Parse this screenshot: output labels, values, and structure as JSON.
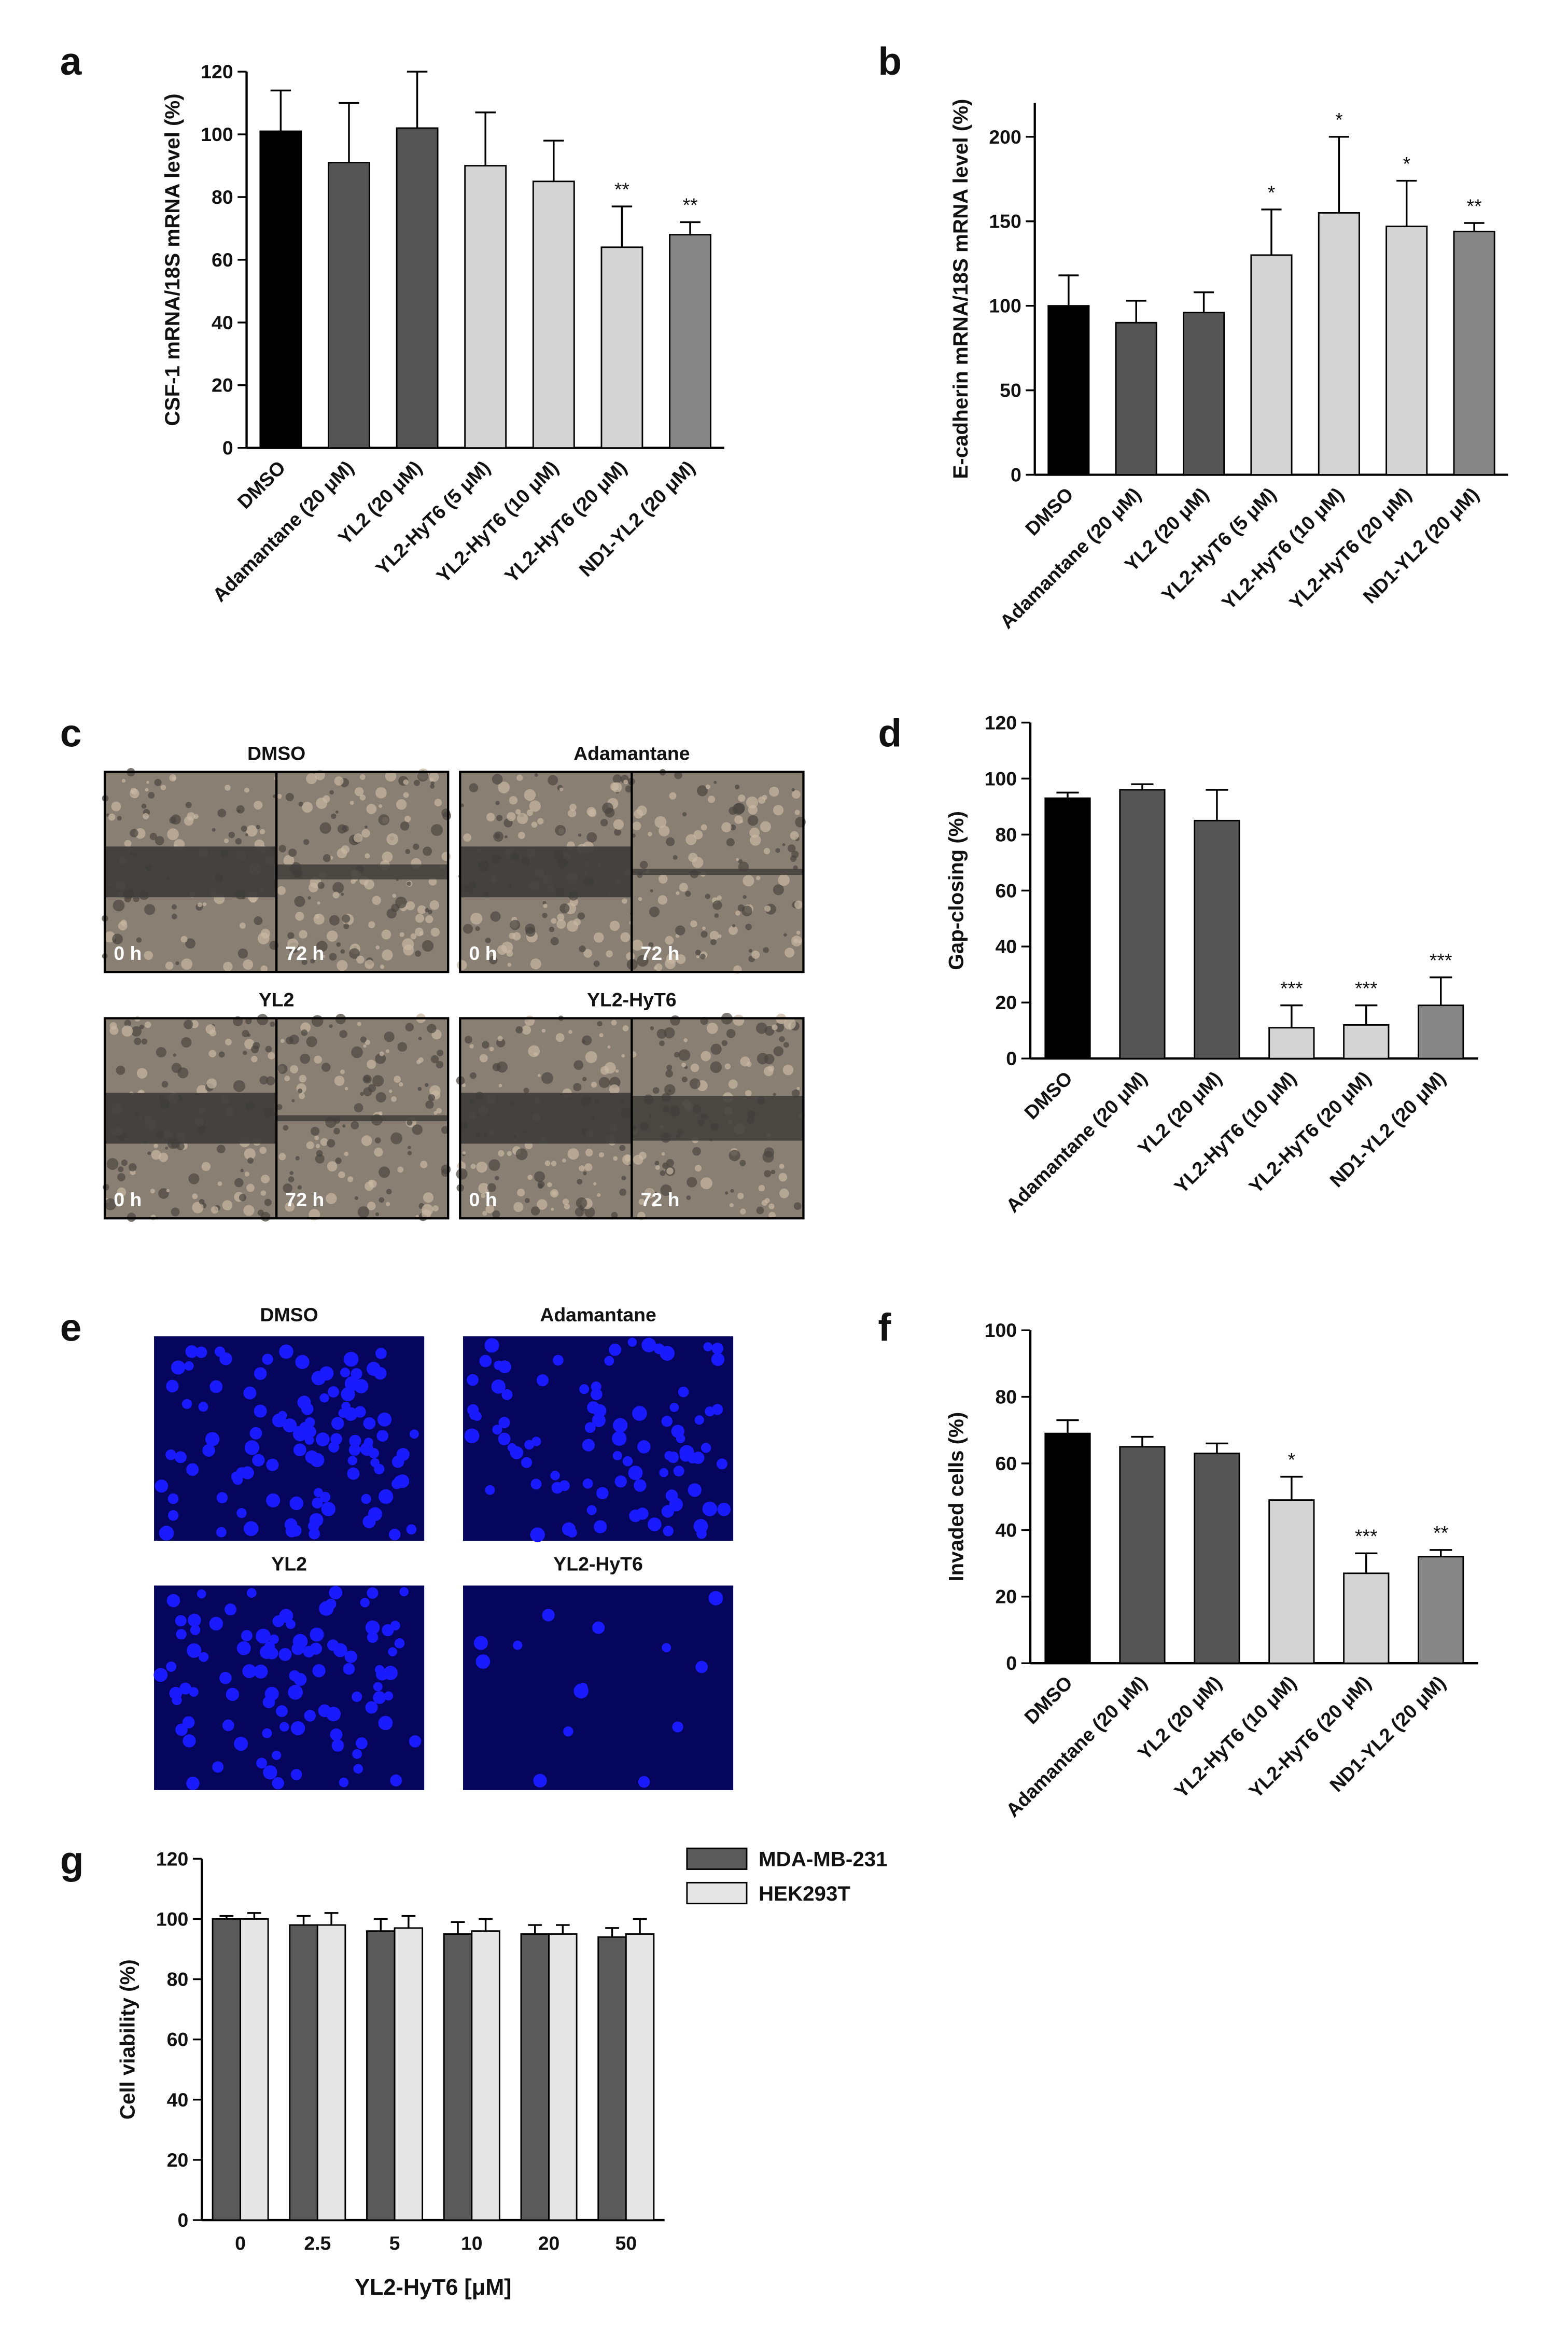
{
  "chart_data": [
    {
      "type": "bar",
      "panel_label": "a",
      "ylabel": "CSF-1 mRNA/18S mRNA level (%)",
      "categories": [
        "DMSO",
        "Adamantane (20 μM)",
        "YL2 (20 μM)",
        "YL2-HyT6 (5 μM)",
        "YL2-HyT6 (10 μM)",
        "YL2-HyT6 (20 μM)",
        "ND1-YL2 (20 μM)"
      ],
      "values": [
        101,
        91,
        102,
        90,
        85,
        64,
        68
      ],
      "errors": [
        13,
        19,
        18,
        17,
        13,
        13,
        4
      ],
      "annotations": [
        null,
        null,
        null,
        null,
        null,
        "**",
        "**"
      ],
      "colors": [
        "#000000",
        "#555555",
        "#555555",
        "#d4d4d4",
        "#d4d4d4",
        "#d4d4d4",
        "#858585"
      ],
      "ylim": [
        0,
        120
      ],
      "yticks": [
        0,
        20,
        40,
        60,
        80,
        100,
        120
      ]
    },
    {
      "type": "bar",
      "panel_label": "b",
      "ylabel": "E-cadherin mRNA/18S mRNA level (%)",
      "categories": [
        "DMSO",
        "Adamantane (20 μM)",
        "YL2 (20 μM)",
        "YL2-HyT6 (5 μM)",
        "YL2-HyT6 (10 μM)",
        "YL2-HyT6 (20 μM)",
        "ND1-YL2 (20 μM)"
      ],
      "values": [
        100,
        90,
        96,
        130,
        155,
        147,
        144
      ],
      "errors": [
        18,
        13,
        12,
        27,
        45,
        27,
        5
      ],
      "annotations": [
        null,
        null,
        null,
        "*",
        "*",
        "*",
        "**"
      ],
      "colors": [
        "#000000",
        "#555555",
        "#555555",
        "#d4d4d4",
        "#d4d4d4",
        "#d4d4d4",
        "#858585"
      ],
      "ylim": [
        0,
        220
      ],
      "yticks": [
        0,
        50,
        100,
        150,
        200
      ]
    },
    {
      "type": "bar",
      "panel_label": "d",
      "ylabel": "Gap-closing (%)",
      "categories": [
        "DMSO",
        "Adamantane (20 μM)",
        "YL2 (20 μM)",
        "YL2-HyT6 (10 μM)",
        "YL2-HyT6 (20 μM)",
        "ND1-YL2 (20 μM)"
      ],
      "values": [
        93,
        96,
        85,
        11,
        12,
        19
      ],
      "errors": [
        2,
        2,
        11,
        8,
        7,
        10
      ],
      "annotations": [
        null,
        null,
        null,
        "***",
        "***",
        "***"
      ],
      "colors": [
        "#000000",
        "#555555",
        "#555555",
        "#d4d4d4",
        "#d4d4d4",
        "#858585"
      ],
      "ylim": [
        0,
        120
      ],
      "yticks": [
        0,
        20,
        40,
        60,
        80,
        100,
        120
      ]
    },
    {
      "type": "bar",
      "panel_label": "f",
      "ylabel": "Invaded cells (%)",
      "categories": [
        "DMSO",
        "Adamantane (20 μM)",
        "YL2 (20 μM)",
        "YL2-HyT6 (10 μM)",
        "YL2-HyT6 (20 μM)",
        "ND1-YL2 (20 μM)"
      ],
      "values": [
        69,
        65,
        63,
        49,
        27,
        32
      ],
      "errors": [
        4,
        3,
        3,
        7,
        6,
        2
      ],
      "annotations": [
        null,
        null,
        null,
        "*",
        "***",
        "**"
      ],
      "colors": [
        "#000000",
        "#555555",
        "#555555",
        "#d4d4d4",
        "#d4d4d4",
        "#858585"
      ],
      "ylim": [
        0,
        100
      ],
      "yticks": [
        0,
        20,
        40,
        60,
        80,
        100
      ]
    },
    {
      "type": "grouped_bar",
      "panel_label": "g",
      "ylabel": "Cell viability (%)",
      "xlabel": "YL2-HyT6 [μM]",
      "categories": [
        "0",
        "2.5",
        "5",
        "10",
        "20",
        "50"
      ],
      "series": [
        {
          "name": "MDA-MB-231",
          "color": "#5a5a5a",
          "values": [
            100,
            98,
            96,
            95,
            95,
            94
          ],
          "errors": [
            1,
            3,
            4,
            4,
            3,
            3
          ]
        },
        {
          "name": "HEK293T",
          "color": "#e6e6e6",
          "values": [
            100,
            98,
            97,
            96,
            95,
            95
          ],
          "errors": [
            2,
            4,
            4,
            4,
            3,
            5
          ]
        }
      ],
      "ylim": [
        0,
        120
      ],
      "yticks": [
        0,
        20,
        40,
        60,
        80,
        100,
        120
      ],
      "legend": "top-right"
    }
  ],
  "images": {
    "c": {
      "panel_label": "c",
      "items": [
        {
          "title": "DMSO",
          "left": "0 h",
          "right": "72 h"
        },
        {
          "title": "Adamantane",
          "left": "0 h",
          "right": "72 h"
        },
        {
          "title": "YL2",
          "left": "0 h",
          "right": "72 h"
        },
        {
          "title": "YL2-HyT6",
          "left": "0 h",
          "right": "72 h"
        }
      ]
    },
    "e": {
      "panel_label": "e",
      "items": [
        {
          "title": "DMSO"
        },
        {
          "title": "Adamantane"
        },
        {
          "title": "YL2"
        },
        {
          "title": "YL2-HyT6"
        }
      ]
    }
  }
}
